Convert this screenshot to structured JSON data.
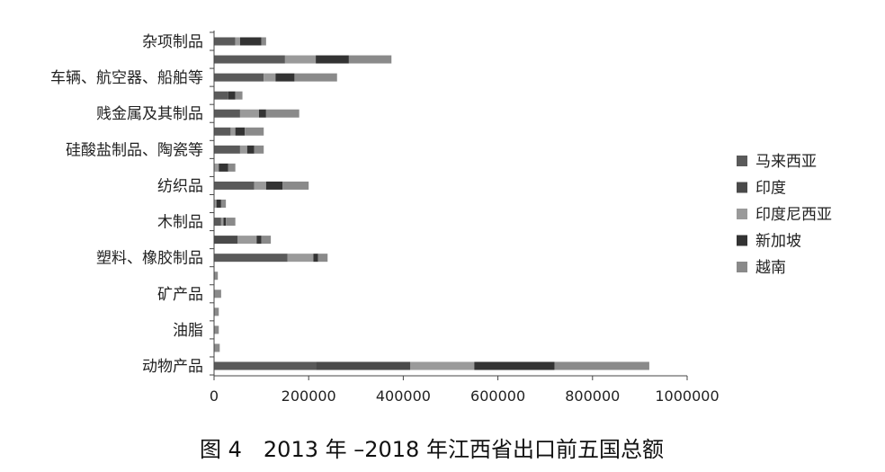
{
  "chart_data": {
    "type": "bar",
    "orientation": "horizontal",
    "stacked": true,
    "title": "图 4　2013 年 –2018 年江西省出口前五国总额",
    "categories": [
      "动物产品",
      "",
      "油脂",
      "",
      "矿产品",
      "",
      "塑料、橡胶制品",
      "",
      "木制品",
      "",
      "纺织品",
      "",
      "硅酸盐制品、陶瓷等",
      "",
      "贱金属及其制品",
      "",
      "车辆、航空器、船舶等",
      "",
      "杂项制品"
    ],
    "series": [
      {
        "name": "马来西亚",
        "color": "#5a5a5a",
        "values": [
          215000,
          0,
          0,
          0,
          0,
          0,
          155000,
          0,
          15000,
          0,
          85000,
          0,
          55000,
          35000,
          55000,
          30000,
          105000,
          150000,
          45000
        ]
      },
      {
        "name": "印度",
        "color": "#4a4a4a",
        "values": [
          200000,
          0,
          0,
          0,
          0,
          0,
          0,
          50000,
          0,
          0,
          0,
          0,
          0,
          0,
          0,
          0,
          0,
          0,
          0
        ]
      },
      {
        "name": "印度尼西亚",
        "color": "#9a9a9a",
        "values": [
          135000,
          0,
          0,
          0,
          0,
          0,
          55000,
          40000,
          5000,
          5000,
          25000,
          10000,
          15000,
          10000,
          40000,
          0,
          25000,
          65000,
          10000
        ]
      },
      {
        "name": "新加坡",
        "color": "#333333",
        "values": [
          170000,
          0,
          0,
          0,
          0,
          0,
          10000,
          10000,
          5000,
          10000,
          35000,
          20000,
          15000,
          20000,
          15000,
          15000,
          40000,
          70000,
          45000
        ]
      },
      {
        "name": "越南",
        "color": "#8a8a8a",
        "values": [
          200000,
          12000,
          10000,
          10000,
          15000,
          8000,
          20000,
          20000,
          20000,
          10000,
          55000,
          15000,
          20000,
          40000,
          70000,
          15000,
          90000,
          90000,
          10000
        ]
      }
    ],
    "xticks": [
      "0",
      "200000",
      "400000",
      "600000",
      "800000",
      "1000000"
    ],
    "xlim": [
      0,
      1000000
    ],
    "grid": false,
    "legend_position": "right"
  }
}
